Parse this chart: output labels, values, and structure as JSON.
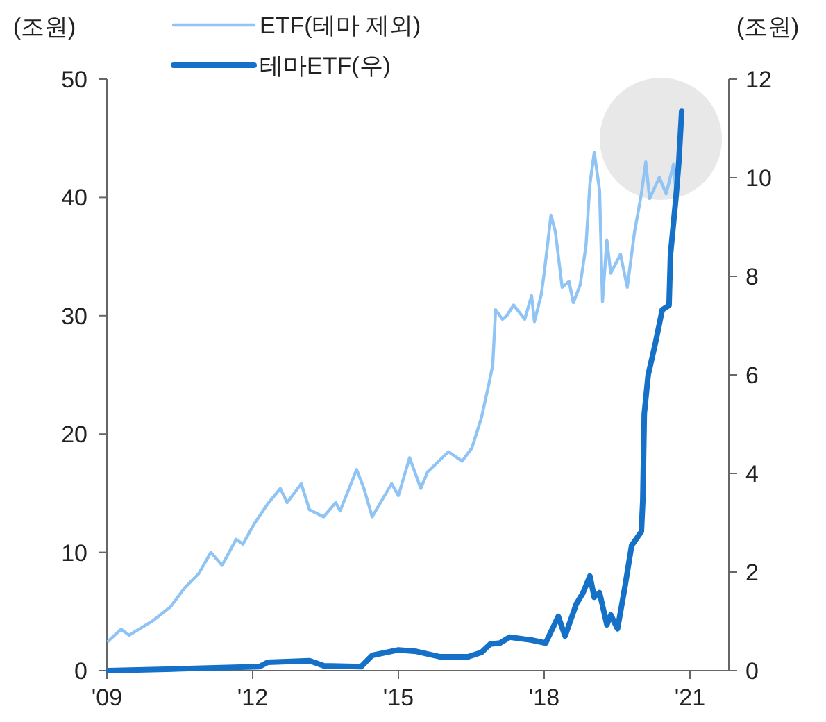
{
  "chart_data": {
    "type": "line",
    "ylabel": "(조원)",
    "y2label": "(조원)",
    "xlim": [
      2009,
      2021.8
    ],
    "xticks": [
      {
        "value": 2009,
        "label": "'09"
      },
      {
        "value": 2012,
        "label": "'12"
      },
      {
        "value": 2015,
        "label": "'15"
      },
      {
        "value": 2018,
        "label": "'18"
      },
      {
        "value": 2021,
        "label": "'21"
      }
    ],
    "ylim": [
      0,
      50
    ],
    "yticks": [
      0,
      10,
      20,
      30,
      40,
      50
    ],
    "y2lim": [
      0,
      12
    ],
    "y2ticks": [
      0,
      2,
      4,
      6,
      8,
      10,
      12
    ],
    "grid": false,
    "legend": "top left",
    "line_style": "solid",
    "series": [
      {
        "name": "ETF(테마 제외)",
        "color": "#8fc4f5",
        "x": [
          2009.03,
          2009.29,
          2009.46,
          2009.94,
          2010.31,
          2010.6,
          2010.89,
          2011.14,
          2011.37,
          2011.66,
          2011.8,
          2012.03,
          2012.31,
          2012.57,
          2012.71,
          2013.0,
          2013.17,
          2013.46,
          2013.71,
          2013.8,
          2014.14,
          2014.29,
          2014.46,
          2014.86,
          2015.0,
          2015.23,
          2015.46,
          2015.6,
          2016.03,
          2016.31,
          2016.51,
          2016.71,
          2016.86,
          2016.94,
          2017.0,
          2017.14,
          2017.23,
          2017.37,
          2017.6,
          2017.74,
          2017.8,
          2017.94,
          2018.0,
          2018.14,
          2018.23,
          2018.37,
          2018.51,
          2018.6,
          2018.74,
          2018.86,
          2018.94,
          2019.03,
          2019.14,
          2019.2,
          2019.29,
          2019.37,
          2019.57,
          2019.71,
          2019.86,
          2020.0,
          2020.09,
          2020.17,
          2020.37,
          2020.51,
          2020.66,
          2020.71
        ],
        "values": [
          2.5,
          3.5,
          3.0,
          4.2,
          5.4,
          7.0,
          8.2,
          10.0,
          8.9,
          11.1,
          10.7,
          12.4,
          14.1,
          15.4,
          14.2,
          15.8,
          13.6,
          13.0,
          14.2,
          13.5,
          17.0,
          15.4,
          13.0,
          15.8,
          14.8,
          18.0,
          15.4,
          16.8,
          18.5,
          17.7,
          18.8,
          21.4,
          24.2,
          25.8,
          30.5,
          29.7,
          30.0,
          30.9,
          29.7,
          31.7,
          29.5,
          31.8,
          33.6,
          38.5,
          37.1,
          32.4,
          32.9,
          31.1,
          32.6,
          35.9,
          41.1,
          43.8,
          40.6,
          31.2,
          36.4,
          33.6,
          35.2,
          32.4,
          37.1,
          40.3,
          43.0,
          39.9,
          41.7,
          40.3,
          42.8,
          40.6
        ]
      },
      {
        "name": "테마ETF(우)",
        "color": "#1570c8",
        "axis": "y2",
        "x": [
          2009.03,
          2010.23,
          2012.14,
          2012.31,
          2013.17,
          2013.46,
          2014.23,
          2014.46,
          2015.0,
          2015.37,
          2015.86,
          2016.43,
          2016.71,
          2016.89,
          2017.09,
          2017.29,
          2017.74,
          2018.03,
          2018.29,
          2018.43,
          2018.66,
          2018.8,
          2018.94,
          2019.03,
          2019.14,
          2019.29,
          2019.37,
          2019.51,
          2019.66,
          2019.8,
          2020.0,
          2020.03,
          2020.06,
          2020.14,
          2020.29,
          2020.43,
          2020.57,
          2020.6,
          2020.71,
          2020.77,
          2020.83
        ],
        "values": [
          0.0,
          0.03,
          0.08,
          0.17,
          0.2,
          0.1,
          0.08,
          0.31,
          0.42,
          0.39,
          0.28,
          0.28,
          0.37,
          0.54,
          0.56,
          0.68,
          0.62,
          0.56,
          1.1,
          0.7,
          1.35,
          1.58,
          1.92,
          1.49,
          1.58,
          0.93,
          1.13,
          0.85,
          1.69,
          2.54,
          2.82,
          3.46,
          5.21,
          6.0,
          6.65,
          7.32,
          7.41,
          8.45,
          9.58,
          10.31,
          11.35
        ]
      }
    ]
  }
}
